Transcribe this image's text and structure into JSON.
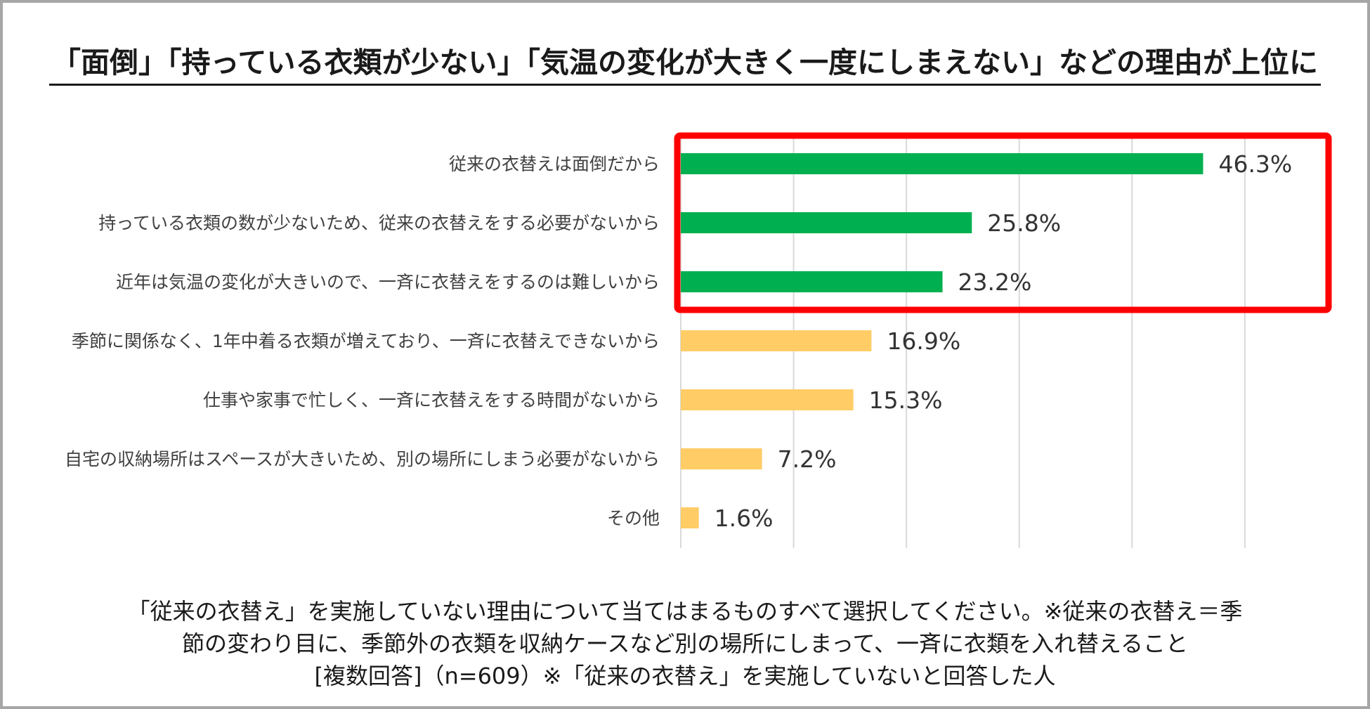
{
  "title": "「面倒」「持っている衣類が少ない」「気温の変化が大きく一度にしまえない」などの理由が上位に",
  "chart_data": {
    "type": "bar",
    "orientation": "horizontal",
    "categories": [
      "従来の衣替えは面倒だから",
      "持っている衣類の数が少ないため、従来の衣替えをする必要がないから",
      "近年は気温の変化が大きいので、一斉に衣替えをするのは難しいから",
      "季節に関係なく、1年中着る衣類が増えており、一斉に衣替えできないから",
      "仕事や家事で忙しく、一斉に衣替えをする時間がないから",
      "自宅の収納場所はスペースが大きいため、別の場所にしまう必要がないから",
      "その他"
    ],
    "values": [
      46.3,
      25.8,
      23.2,
      16.9,
      15.3,
      7.2,
      1.6
    ],
    "value_labels": [
      "46.3%",
      "25.8%",
      "23.2%",
      "16.9%",
      "15.3%",
      "7.2%",
      "1.6%"
    ],
    "xlim": [
      0,
      50
    ],
    "grid": true,
    "highlighted_top_n": 3,
    "colors": {
      "highlight": "#00b050",
      "default": "#ffcc66",
      "highlight_box": "#ff0000",
      "gridline": "#d9d9d9"
    }
  },
  "footer": {
    "line1": "「従来の衣替え」を実施していない理由について当てはまるものすべて選択してください。※従来の衣替え＝季",
    "line2": "節の変わり目に、季節外の衣類を収納ケースなど別の場所にしまって、一斉に衣類を入れ替えること",
    "line3": "[複数回答]（n=609）※「従来の衣替え」を実施していないと回答した人"
  }
}
